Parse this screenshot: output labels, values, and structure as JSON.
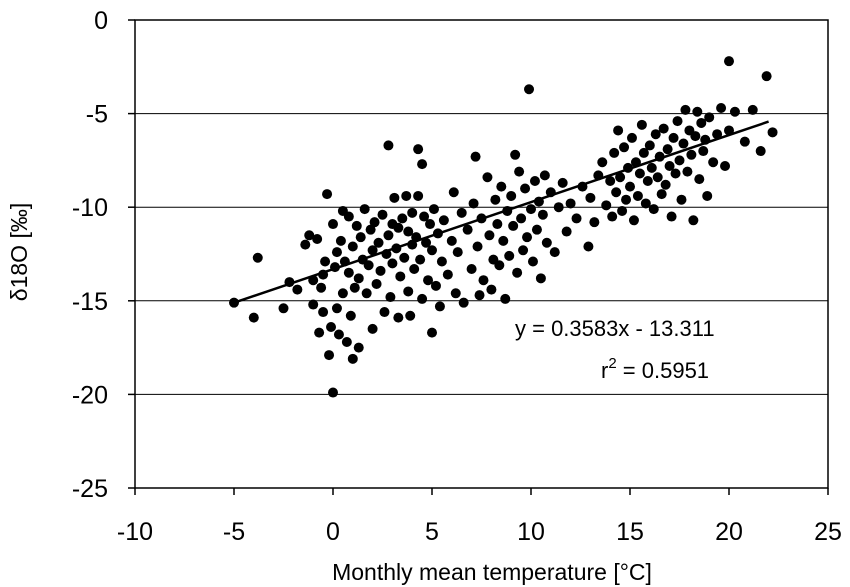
{
  "chart_data": {
    "type": "scatter",
    "xlabel": "Monthly mean temperature [°C]",
    "ylabel": "δ18O [‰]",
    "xlim": [
      -10,
      25
    ],
    "ylim": [
      -25,
      0
    ],
    "x_ticks": [
      "-10",
      "-5",
      "0",
      "5",
      "10",
      "15",
      "20",
      "25"
    ],
    "y_ticks": [
      "0",
      "-5",
      "-10",
      "-15",
      "-20",
      "-25"
    ],
    "grid": "horizontal",
    "marker_color": "#000000",
    "trendline": {
      "slope": 0.3583,
      "intercept": -13.311,
      "x_range": [
        -5,
        22
      ]
    },
    "annotations": {
      "equation": "y = 0.3583x - 13.311",
      "r2_prefix": "r",
      "r2_exp": "2",
      "r2_value": " = 0.5951"
    },
    "series": [
      {
        "points": [
          [
            -5,
            -15.1
          ],
          [
            -4,
            -15.9
          ],
          [
            -3.8,
            -12.7
          ],
          [
            -2.5,
            -15.4
          ],
          [
            -2.2,
            -14
          ],
          [
            -1.8,
            -14.4
          ],
          [
            -1.4,
            -12
          ],
          [
            -1.2,
            -11.5
          ],
          [
            -1,
            -13.9
          ],
          [
            -1,
            -15.2
          ],
          [
            -0.8,
            -11.7
          ],
          [
            -0.7,
            -16.7
          ],
          [
            -0.6,
            -14.3
          ],
          [
            -0.5,
            -13.6
          ],
          [
            -0.5,
            -15.6
          ],
          [
            -0.4,
            -12.9
          ],
          [
            -0.3,
            -9.3
          ],
          [
            -0.2,
            -17.9
          ],
          [
            -0.1,
            -16.4
          ],
          [
            0,
            -19.9
          ],
          [
            0,
            -10.9
          ],
          [
            0.1,
            -13.2
          ],
          [
            0.2,
            -15.4
          ],
          [
            0.2,
            -12.4
          ],
          [
            0.3,
            -16.8
          ],
          [
            0.4,
            -11.8
          ],
          [
            0.5,
            -14.6
          ],
          [
            0.5,
            -10.2
          ],
          [
            0.6,
            -12.9
          ],
          [
            0.7,
            -17.2
          ],
          [
            0.8,
            -13.5
          ],
          [
            0.8,
            -10.5
          ],
          [
            0.9,
            -15.8
          ],
          [
            1,
            -18.1
          ],
          [
            1,
            -12.1
          ],
          [
            1.1,
            -14.3
          ],
          [
            1.2,
            -11
          ],
          [
            1.3,
            -17.5
          ],
          [
            1.3,
            -13.8
          ],
          [
            1.4,
            -11.6
          ],
          [
            1.5,
            -12.8
          ],
          [
            1.6,
            -10.1
          ],
          [
            1.7,
            -14.6
          ],
          [
            1.8,
            -13.1
          ],
          [
            1.9,
            -11.2
          ],
          [
            2,
            -16.5
          ],
          [
            2,
            -12.3
          ],
          [
            2.1,
            -10.8
          ],
          [
            2.2,
            -14.1
          ],
          [
            2.3,
            -11.9
          ],
          [
            2.4,
            -13.4
          ],
          [
            2.5,
            -10.4
          ],
          [
            2.6,
            -15.6
          ],
          [
            2.7,
            -12.5
          ],
          [
            2.8,
            -6.7
          ],
          [
            2.8,
            -11.5
          ],
          [
            2.9,
            -14.8
          ],
          [
            3,
            -10.9
          ],
          [
            3,
            -13
          ],
          [
            3.1,
            -9.5
          ],
          [
            3.2,
            -12.2
          ],
          [
            3.3,
            -15.9
          ],
          [
            3.3,
            -11.1
          ],
          [
            3.4,
            -13.7
          ],
          [
            3.5,
            -10.6
          ],
          [
            3.6,
            -12.7
          ],
          [
            3.7,
            -9.4
          ],
          [
            3.8,
            -14.5
          ],
          [
            3.8,
            -11.3
          ],
          [
            3.9,
            -15.8
          ],
          [
            4,
            -12
          ],
          [
            4,
            -10.3
          ],
          [
            4.1,
            -13.3
          ],
          [
            4.2,
            -11.6
          ],
          [
            4.3,
            -6.9
          ],
          [
            4.3,
            -9.4
          ],
          [
            4.4,
            -12.8
          ],
          [
            4.5,
            -7.7
          ],
          [
            4.5,
            -14.9
          ],
          [
            4.6,
            -10.5
          ],
          [
            4.7,
            -11.9
          ],
          [
            4.8,
            -13.9
          ],
          [
            4.9,
            -10.9
          ],
          [
            5,
            -16.7
          ],
          [
            5,
            -12.3
          ],
          [
            5.1,
            -10.1
          ],
          [
            5.2,
            -14.2
          ],
          [
            5.3,
            -11.4
          ],
          [
            5.4,
            -15.3
          ],
          [
            5.5,
            -12.9
          ],
          [
            5.6,
            -10.7
          ],
          [
            5.8,
            -13.6
          ],
          [
            6,
            -11.8
          ],
          [
            6.1,
            -9.2
          ],
          [
            6.2,
            -14.6
          ],
          [
            6.3,
            -12.4
          ],
          [
            6.5,
            -10.3
          ],
          [
            6.6,
            -15.1
          ],
          [
            6.8,
            -11.2
          ],
          [
            7,
            -13.3
          ],
          [
            7.1,
            -9.8
          ],
          [
            7.2,
            -7.3
          ],
          [
            7.3,
            -12.1
          ],
          [
            7.4,
            -14.7
          ],
          [
            7.5,
            -10.6
          ],
          [
            7.6,
            -13.9
          ],
          [
            7.8,
            -8.4
          ],
          [
            7.9,
            -11.5
          ],
          [
            8,
            -14.4
          ],
          [
            8.1,
            -12.8
          ],
          [
            8.2,
            -9.6
          ],
          [
            8.3,
            -10.9
          ],
          [
            8.4,
            -13.1
          ],
          [
            8.5,
            -8.9
          ],
          [
            8.6,
            -11.8
          ],
          [
            8.7,
            -14.9
          ],
          [
            8.8,
            -10.2
          ],
          [
            8.9,
            -12.6
          ],
          [
            9,
            -9.4
          ],
          [
            9.1,
            -11
          ],
          [
            9.2,
            -7.2
          ],
          [
            9.3,
            -13.5
          ],
          [
            9.4,
            -8.1
          ],
          [
            9.5,
            -10.6
          ],
          [
            9.6,
            -12.3
          ],
          [
            9.7,
            -9
          ],
          [
            9.8,
            -11.6
          ],
          [
            9.9,
            -3.7
          ],
          [
            10,
            -10.1
          ],
          [
            10.1,
            -12.9
          ],
          [
            10.2,
            -8.6
          ],
          [
            10.3,
            -11.2
          ],
          [
            10.4,
            -9.7
          ],
          [
            10.5,
            -13.8
          ],
          [
            10.6,
            -10.4
          ],
          [
            10.7,
            -8.3
          ],
          [
            10.8,
            -11.9
          ],
          [
            11,
            -9.2
          ],
          [
            11.2,
            -12.4
          ],
          [
            11.4,
            -10
          ],
          [
            11.6,
            -8.7
          ],
          [
            11.8,
            -11.3
          ],
          [
            12,
            -9.8
          ],
          [
            12.3,
            -10.6
          ],
          [
            12.6,
            -8.9
          ],
          [
            12.9,
            -12.1
          ],
          [
            13,
            -9.5
          ],
          [
            13.2,
            -10.8
          ],
          [
            13.4,
            -8.3
          ],
          [
            13.6,
            -7.6
          ],
          [
            13.8,
            -9.9
          ],
          [
            14,
            -8.6
          ],
          [
            14.1,
            -10.5
          ],
          [
            14.2,
            -7.1
          ],
          [
            14.3,
            -9.2
          ],
          [
            14.4,
            -5.9
          ],
          [
            14.5,
            -8.4
          ],
          [
            14.6,
            -10.2
          ],
          [
            14.7,
            -6.8
          ],
          [
            14.8,
            -9.6
          ],
          [
            14.9,
            -7.9
          ],
          [
            15,
            -8.9
          ],
          [
            15.1,
            -6.3
          ],
          [
            15.2,
            -10.7
          ],
          [
            15.3,
            -7.6
          ],
          [
            15.4,
            -9.4
          ],
          [
            15.5,
            -8.2
          ],
          [
            15.6,
            -5.6
          ],
          [
            15.7,
            -7.1
          ],
          [
            15.8,
            -9.8
          ],
          [
            15.9,
            -8.6
          ],
          [
            16,
            -6.7
          ],
          [
            16.1,
            -7.9
          ],
          [
            16.2,
            -10.1
          ],
          [
            16.3,
            -6.1
          ],
          [
            16.4,
            -8.4
          ],
          [
            16.5,
            -7.3
          ],
          [
            16.6,
            -9.3
          ],
          [
            16.7,
            -5.8
          ],
          [
            16.8,
            -8.8
          ],
          [
            16.9,
            -6.9
          ],
          [
            17,
            -7.8
          ],
          [
            17.1,
            -10.5
          ],
          [
            17.2,
            -6.3
          ],
          [
            17.3,
            -8.2
          ],
          [
            17.4,
            -5.4
          ],
          [
            17.5,
            -7.5
          ],
          [
            17.6,
            -9.6
          ],
          [
            17.7,
            -6.6
          ],
          [
            17.8,
            -4.8
          ],
          [
            17.9,
            -8.1
          ],
          [
            18,
            -5.9
          ],
          [
            18.1,
            -7.2
          ],
          [
            18.2,
            -10.7
          ],
          [
            18.3,
            -6.2
          ],
          [
            18.4,
            -4.9
          ],
          [
            18.5,
            -8.5
          ],
          [
            18.6,
            -5.5
          ],
          [
            18.7,
            -7
          ],
          [
            18.8,
            -6.4
          ],
          [
            18.9,
            -9.4
          ],
          [
            19,
            -5.2
          ],
          [
            19.2,
            -7.6
          ],
          [
            19.4,
            -6.1
          ],
          [
            19.6,
            -4.7
          ],
          [
            19.8,
            -7.8
          ],
          [
            20,
            -5.9
          ],
          [
            20,
            -2.2
          ],
          [
            20.3,
            -4.9
          ],
          [
            20.8,
            -6.5
          ],
          [
            21.2,
            -4.8
          ],
          [
            21.6,
            -7
          ],
          [
            21.9,
            -3
          ],
          [
            22.2,
            -6
          ]
        ]
      }
    ]
  }
}
